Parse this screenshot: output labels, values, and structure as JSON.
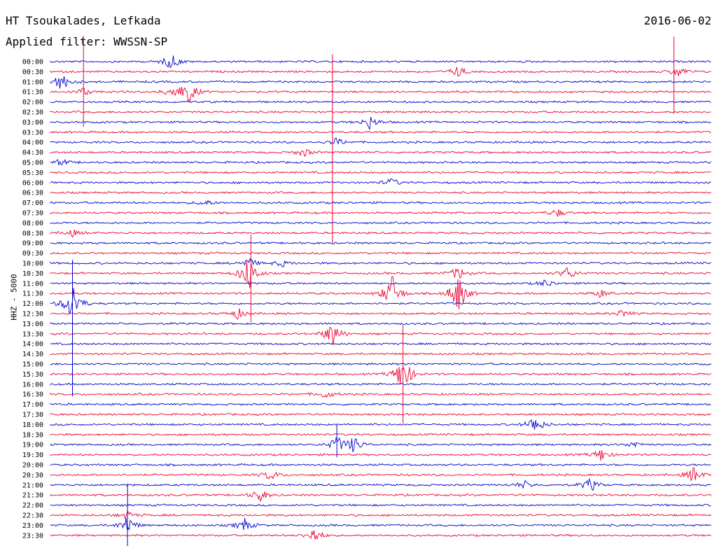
{
  "header": {
    "station": "HT Tsoukalades, Lefkada",
    "date": "2016-06-02",
    "filter_label": "Applied filter: WWSSN-SP",
    "channel_label": "HHZ - 5000"
  },
  "colors": {
    "blue": "#0000cc",
    "red": "#ee0033",
    "text": "#000000",
    "background": "#ffffff"
  },
  "chart_data": {
    "type": "line",
    "chart_kind": "helicorder",
    "title": "HT Tsoukalades, Lefkada",
    "subtitle": "Applied filter: WWSSN-SP",
    "ylabel": "HHZ - 5000",
    "date": "2016-06-02",
    "row_labels": [
      "00:00",
      "00:30",
      "01:00",
      "01:30",
      "02:00",
      "02:30",
      "03:00",
      "03:30",
      "04:00",
      "04:30",
      "05:00",
      "05:30",
      "06:00",
      "06:30",
      "07:00",
      "07:30",
      "08:00",
      "08:30",
      "09:00",
      "09:30",
      "10:00",
      "10:30",
      "11:00",
      "11:30",
      "12:00",
      "12:30",
      "13:00",
      "13:30",
      "14:00",
      "14:30",
      "15:00",
      "15:30",
      "16:00",
      "16:30",
      "17:00",
      "17:30",
      "18:00",
      "18:30",
      "19:00",
      "19:30",
      "20:00",
      "20:30",
      "21:00",
      "21:30",
      "22:00",
      "22:30",
      "23:00",
      "23:30"
    ],
    "row_colors": [
      "blue",
      "red"
    ],
    "row_duration_minutes": 30,
    "grid": false,
    "events": [
      {
        "row": 0,
        "minute": 5.5,
        "amp": 12
      },
      {
        "row": 1,
        "minute": 18.5,
        "amp": 8
      },
      {
        "row": 1,
        "minute": 28.5,
        "amp": 8
      },
      {
        "row": 2,
        "minute": 0.5,
        "amp": 14
      },
      {
        "row": 3,
        "minute": 1.5,
        "amp": 6
      },
      {
        "row": 3,
        "minute": 5.6,
        "amp": 10
      },
      {
        "row": 3,
        "minute": 6.3,
        "amp": 16
      },
      {
        "row": 6,
        "minute": 14.5,
        "amp": 10
      },
      {
        "row": 8,
        "minute": 13.0,
        "amp": 6
      },
      {
        "row": 9,
        "minute": 11.5,
        "amp": 6
      },
      {
        "row": 10,
        "minute": 0.5,
        "amp": 5
      },
      {
        "row": 12,
        "minute": 15.5,
        "amp": 6
      },
      {
        "row": 14,
        "minute": 7.0,
        "amp": 5
      },
      {
        "row": 15,
        "minute": 23.0,
        "amp": 6
      },
      {
        "row": 17,
        "minute": 1.0,
        "amp": 5
      },
      {
        "row": 20,
        "minute": 10.5,
        "amp": 5
      },
      {
        "row": 20,
        "minute": 9.0,
        "amp": 8
      },
      {
        "row": 21,
        "minute": 9.0,
        "amp": 28
      },
      {
        "row": 21,
        "minute": 18.5,
        "amp": 10
      },
      {
        "row": 21,
        "minute": 23.5,
        "amp": 10
      },
      {
        "row": 22,
        "minute": 22.5,
        "amp": 6
      },
      {
        "row": 23,
        "minute": 15.5,
        "amp": 28
      },
      {
        "row": 23,
        "minute": 18.5,
        "amp": 30
      },
      {
        "row": 23,
        "minute": 25.0,
        "amp": 6
      },
      {
        "row": 24,
        "minute": 1.0,
        "amp": 30
      },
      {
        "row": 25,
        "minute": 8.5,
        "amp": 8
      },
      {
        "row": 25,
        "minute": 26.0,
        "amp": 6
      },
      {
        "row": 27,
        "minute": 12.8,
        "amp": 20
      },
      {
        "row": 31,
        "minute": 16.0,
        "amp": 30
      },
      {
        "row": 33,
        "minute": 12.5,
        "amp": 6
      },
      {
        "row": 36,
        "minute": 22.0,
        "amp": 14
      },
      {
        "row": 38,
        "minute": 13.0,
        "amp": 12
      },
      {
        "row": 38,
        "minute": 13.8,
        "amp": 12
      },
      {
        "row": 38,
        "minute": 26.5,
        "amp": 5
      },
      {
        "row": 39,
        "minute": 25.0,
        "amp": 10
      },
      {
        "row": 41,
        "minute": 10.0,
        "amp": 8
      },
      {
        "row": 41,
        "minute": 29.2,
        "amp": 12
      },
      {
        "row": 42,
        "minute": 21.5,
        "amp": 6
      },
      {
        "row": 42,
        "minute": 24.5,
        "amp": 10
      },
      {
        "row": 43,
        "minute": 9.5,
        "amp": 10
      },
      {
        "row": 45,
        "minute": 3.5,
        "amp": 6
      },
      {
        "row": 46,
        "minute": 3.5,
        "amp": 14
      },
      {
        "row": 46,
        "minute": 8.8,
        "amp": 10
      },
      {
        "row": 47,
        "minute": 12.0,
        "amp": 12
      }
    ],
    "spikes": [
      {
        "row": 3,
        "minute": 1.5,
        "up": 80,
        "down": 50
      },
      {
        "row": 9,
        "minute": 12.8,
        "up": 140,
        "down": 130
      },
      {
        "row": 1,
        "minute": 28.3,
        "up": 50,
        "down": 60
      },
      {
        "row": 21,
        "minute": 9.1,
        "up": 55,
        "down": 70
      },
      {
        "row": 28,
        "minute": 1.0,
        "up": 120,
        "down": 75
      },
      {
        "row": 31,
        "minute": 16.0,
        "up": 70,
        "down": 70
      },
      {
        "row": 46,
        "minute": 3.5,
        "up": 60,
        "down": 30
      },
      {
        "row": 38,
        "minute": 13.0,
        "up": 28,
        "down": 18
      }
    ]
  }
}
